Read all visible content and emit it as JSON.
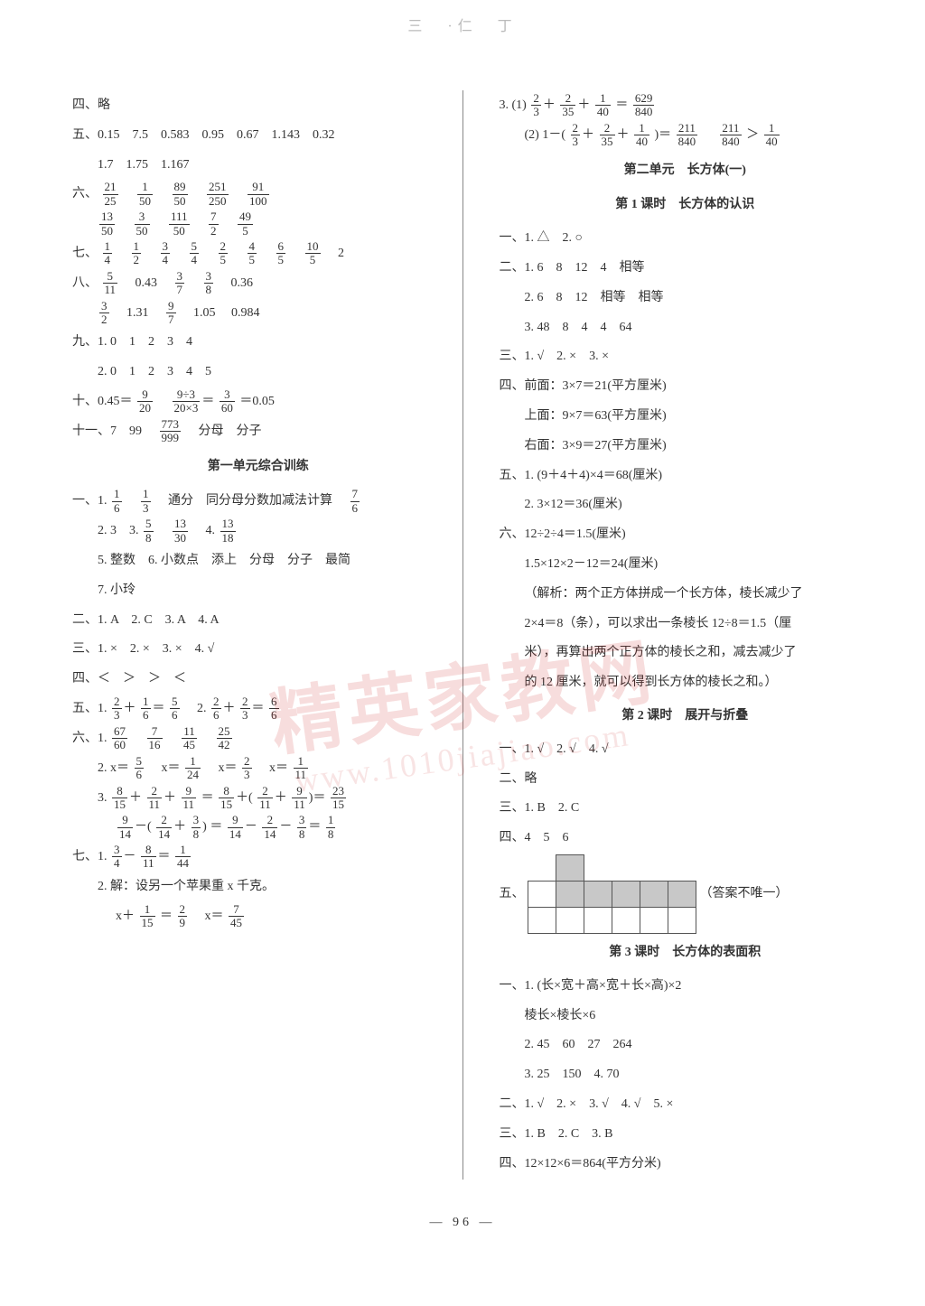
{
  "top_faint": "三　·仁　丁",
  "page_number": "— 96 —",
  "watermark_main": "精英家教网",
  "watermark_sub": "www.1010jiajiao.com",
  "left": {
    "l01": "四、略",
    "l02": "五、0.15　7.5　0.583　0.95　0.67　1.143　0.32",
    "l03": "1.7　1.75　1.167",
    "l04a": "六、",
    "l05a": "七、",
    "l06a": "八、",
    "l07": "九、1. 0　1　2　3　4",
    "l08": "2. 0　1　2　3　4　5",
    "l09a": "十、0.45＝",
    "l09b": "＝0.05",
    "l10a": "十一、7　99　",
    "l10b": "　分母　分子",
    "h1": "第一单元综合训练",
    "l11a": "一、1. ",
    "l11b": "　通分　同分母分数加减法计算　",
    "l12a": "2. 3　3. ",
    "l12b": "　4. ",
    "l13": "5. 整数　6. 小数点　添上　分母　分子　最简",
    "l14": "7. 小玲",
    "l15": "二、1. A　2. C　3. A　4. A",
    "l16": "三、1. ×　2. ×　3. ×　4. √",
    "l17": "四、＜　＞　＞　＜",
    "l18a": "五、1. ",
    "l18b": "　2. ",
    "l19a": "六、1. ",
    "l20a": "2. x＝",
    "l20b": "　x＝",
    "l20c": "　x＝",
    "l20d": "　x＝",
    "l21a": "3. ",
    "l21b": "＝",
    "l22a": "",
    "l22b": "＝",
    "l23a": "七、1. ",
    "l24": "2. 解：设另一个苹果重 x 千克。",
    "l25a": "x＋",
    "l25b": "＝",
    "l25c": "　x＝",
    "fracs": {
      "six_1": [
        "21",
        "25"
      ],
      "six_2": [
        "1",
        "50"
      ],
      "six_3": [
        "89",
        "50"
      ],
      "six_4": [
        "251",
        "250"
      ],
      "six_5": [
        "91",
        "100"
      ],
      "six_6": [
        "13",
        "50"
      ],
      "six_7": [
        "3",
        "50"
      ],
      "six_8": [
        "111",
        "50"
      ],
      "six_9": [
        "7",
        "2"
      ],
      "six_10": [
        "49",
        "5"
      ],
      "sev_1": [
        "1",
        "4"
      ],
      "sev_2": [
        "1",
        "2"
      ],
      "sev_3": [
        "3",
        "4"
      ],
      "sev_4": [
        "5",
        "4"
      ],
      "sev_5": [
        "2",
        "5"
      ],
      "sev_6": [
        "4",
        "5"
      ],
      "sev_7": [
        "6",
        "5"
      ],
      "sev_8": [
        "10",
        "5"
      ],
      "sev_9": "2",
      "eig_1": [
        "5",
        "11"
      ],
      "eig_2": "0.43",
      "eig_3": [
        "3",
        "7"
      ],
      "eig_4": [
        "3",
        "8"
      ],
      "eig_5": "0.36",
      "eig_6": [
        "3",
        "2"
      ],
      "eig_7": "1.31",
      "eig_8": [
        "9",
        "7"
      ],
      "eig_9": "1.05",
      "eig_10": "0.984",
      "ten_1": [
        "9",
        "20"
      ],
      "ten_2": [
        "9÷3",
        "20×3"
      ],
      "ten_3": [
        "3",
        "60"
      ],
      "ele_1": [
        "773",
        "999"
      ],
      "u1_1": [
        "1",
        "6"
      ],
      "u1_2": [
        "1",
        "3"
      ],
      "u1_3": [
        "7",
        "6"
      ],
      "u2_1": [
        "5",
        "8"
      ],
      "u2_2": [
        "13",
        "30"
      ],
      "u2_3": [
        "13",
        "18"
      ],
      "u5_1": [
        "2",
        "3"
      ],
      "u5_2": [
        "1",
        "6"
      ],
      "u5_3": [
        "5",
        "6"
      ],
      "u5_4": [
        "2",
        "6"
      ],
      "u5_5": [
        "2",
        "3"
      ],
      "u5_6": [
        "6",
        "6"
      ],
      "u6_1": [
        "67",
        "60"
      ],
      "u6_2": [
        "7",
        "16"
      ],
      "u6_3": [
        "11",
        "45"
      ],
      "u6_4": [
        "25",
        "42"
      ],
      "u6_5": [
        "5",
        "6"
      ],
      "u6_6": [
        "1",
        "24"
      ],
      "u6_7": [
        "2",
        "3"
      ],
      "u6_8": [
        "1",
        "11"
      ],
      "u6_9": [
        "8",
        "15"
      ],
      "u6_10": [
        "2",
        "11"
      ],
      "u6_11": [
        "9",
        "11"
      ],
      "u6_12": [
        "8",
        "15"
      ],
      "u6_13": [
        "2",
        "11"
      ],
      "u6_14": [
        "9",
        "11"
      ],
      "u6_15": [
        "23",
        "15"
      ],
      "u6_16": [
        "9",
        "14"
      ],
      "u6_17": [
        "2",
        "14"
      ],
      "u6_18": [
        "3",
        "8"
      ],
      "u6_19": [
        "9",
        "14"
      ],
      "u6_20": [
        "2",
        "14"
      ],
      "u6_21": [
        "3",
        "8"
      ],
      "u6_22": [
        "1",
        "8"
      ],
      "u7_1": [
        "3",
        "4"
      ],
      "u7_2": [
        "8",
        "11"
      ],
      "u7_3": [
        "1",
        "44"
      ],
      "u7_4": [
        "1",
        "15"
      ],
      "u7_5": [
        "2",
        "9"
      ],
      "u7_6": [
        "7",
        "45"
      ]
    }
  },
  "right": {
    "r01a": "3. (1) ",
    "r01b": "＝",
    "r02a": "(2) 1－(",
    "r02b": ")＝",
    "r02c": "　",
    "r02d": "＞",
    "h2": "第二单元　长方体(一)",
    "h2s1": "第 1 课时　长方体的认识",
    "r03": "一、1. △　2. ○",
    "r04": "二、1. 6　8　12　4　相等",
    "r05": "2. 6　8　12　相等　相等",
    "r06": "3. 48　8　4　4　64",
    "r07": "三、1. √　2. ×　3. ×",
    "r08": "四、前面：3×7＝21(平方厘米)",
    "r09": "上面：9×7＝63(平方厘米)",
    "r10": "右面：3×9＝27(平方厘米)",
    "r11": "五、1. (9＋4＋4)×4＝68(厘米)",
    "r12": "2. 3×12＝36(厘米)",
    "r13": "六、12÷2÷4＝1.5(厘米)",
    "r14": "1.5×12×2－12＝24(厘米)",
    "r15": "（解析：两个正方体拼成一个长方体，棱长减少了",
    "r16": "2×4＝8（条），可以求出一条棱长 12÷8＝1.5（厘",
    "r17": "米），再算出两个正方体的棱长之和，减去减少了",
    "r18": "的 12 厘米，就可以得到长方体的棱长之和。）",
    "h2s2": "第 2 课时　展开与折叠",
    "r19": "一、1. √　2. √　4. √",
    "r20": "二、略",
    "r21": "三、1. B　2. C",
    "r22": "四、4　5　6",
    "r23a": "五、",
    "r23b": "（答案不唯一）",
    "h2s3": "第 3 课时　长方体的表面积",
    "r24": "一、1. (长×宽＋高×宽＋长×高)×2",
    "r25": "棱长×棱长×6",
    "r26": "2. 45　60　27　264",
    "r27": "3. 25　150　4. 70",
    "r28": "二、1. √　2. ×　3. √　4. √　5. ×",
    "r29": "三、1. B　2. C　3. B",
    "r30": "四、12×12×6＝864(平方分米)",
    "fracs": {
      "r1_1": [
        "2",
        "3"
      ],
      "r1_2": [
        "2",
        "35"
      ],
      "r1_3": [
        "1",
        "40"
      ],
      "r1_4": [
        "629",
        "840"
      ],
      "r2_1": [
        "2",
        "3"
      ],
      "r2_2": [
        "2",
        "35"
      ],
      "r2_3": [
        "1",
        "40"
      ],
      "r2_4": [
        "211",
        "840"
      ],
      "r2_5": [
        "211",
        "840"
      ],
      "r2_6": [
        "1",
        "40"
      ]
    }
  }
}
